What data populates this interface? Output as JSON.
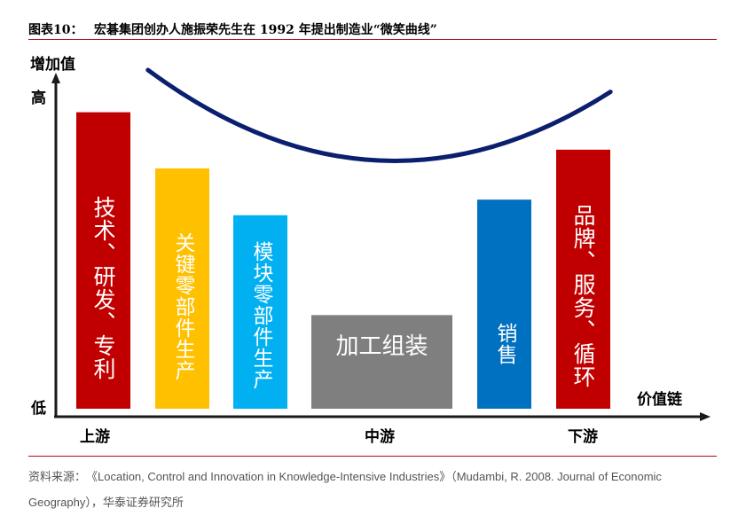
{
  "header": {
    "figure_label": "图表10：",
    "figure_title": "宏碁集团创办人施振荣先生在 1992 年提出制造业“微笑曲线”"
  },
  "source": {
    "label": "资料来源：",
    "text": "《Location, Control and Innovation in Knowledge-Intensive Industries》（Mudambi, R. 2008. Journal of Economic Geography），",
    "org": "华泰证券研究所"
  },
  "chart_data": {
    "type": "bar",
    "title": "",
    "ylabel": "增加值",
    "xlabel": "价值链",
    "y_high_label": "高",
    "y_low_label": "低",
    "ylim": [
      0,
      100
    ],
    "stage_labels": [
      "上游",
      "中游",
      "下游"
    ],
    "categories": [
      "技术、研发、专利",
      "关键零部件生产",
      "模块零部件生产",
      "加工组装",
      "销售",
      "品牌、服务、循环"
    ],
    "values": [
      95,
      77,
      62,
      30,
      67,
      83
    ],
    "colors": {
      "red": "#c00000",
      "yellow": "#ffc000",
      "cyan": "#00b0f0",
      "gray": "#7f7f7f",
      "blue": "#0070c0",
      "curve": "#0a1f6e"
    },
    "curve": {
      "type": "line",
      "x": [
        0.15,
        0.5,
        0.85
      ],
      "y": [
        100,
        71,
        93
      ]
    }
  }
}
